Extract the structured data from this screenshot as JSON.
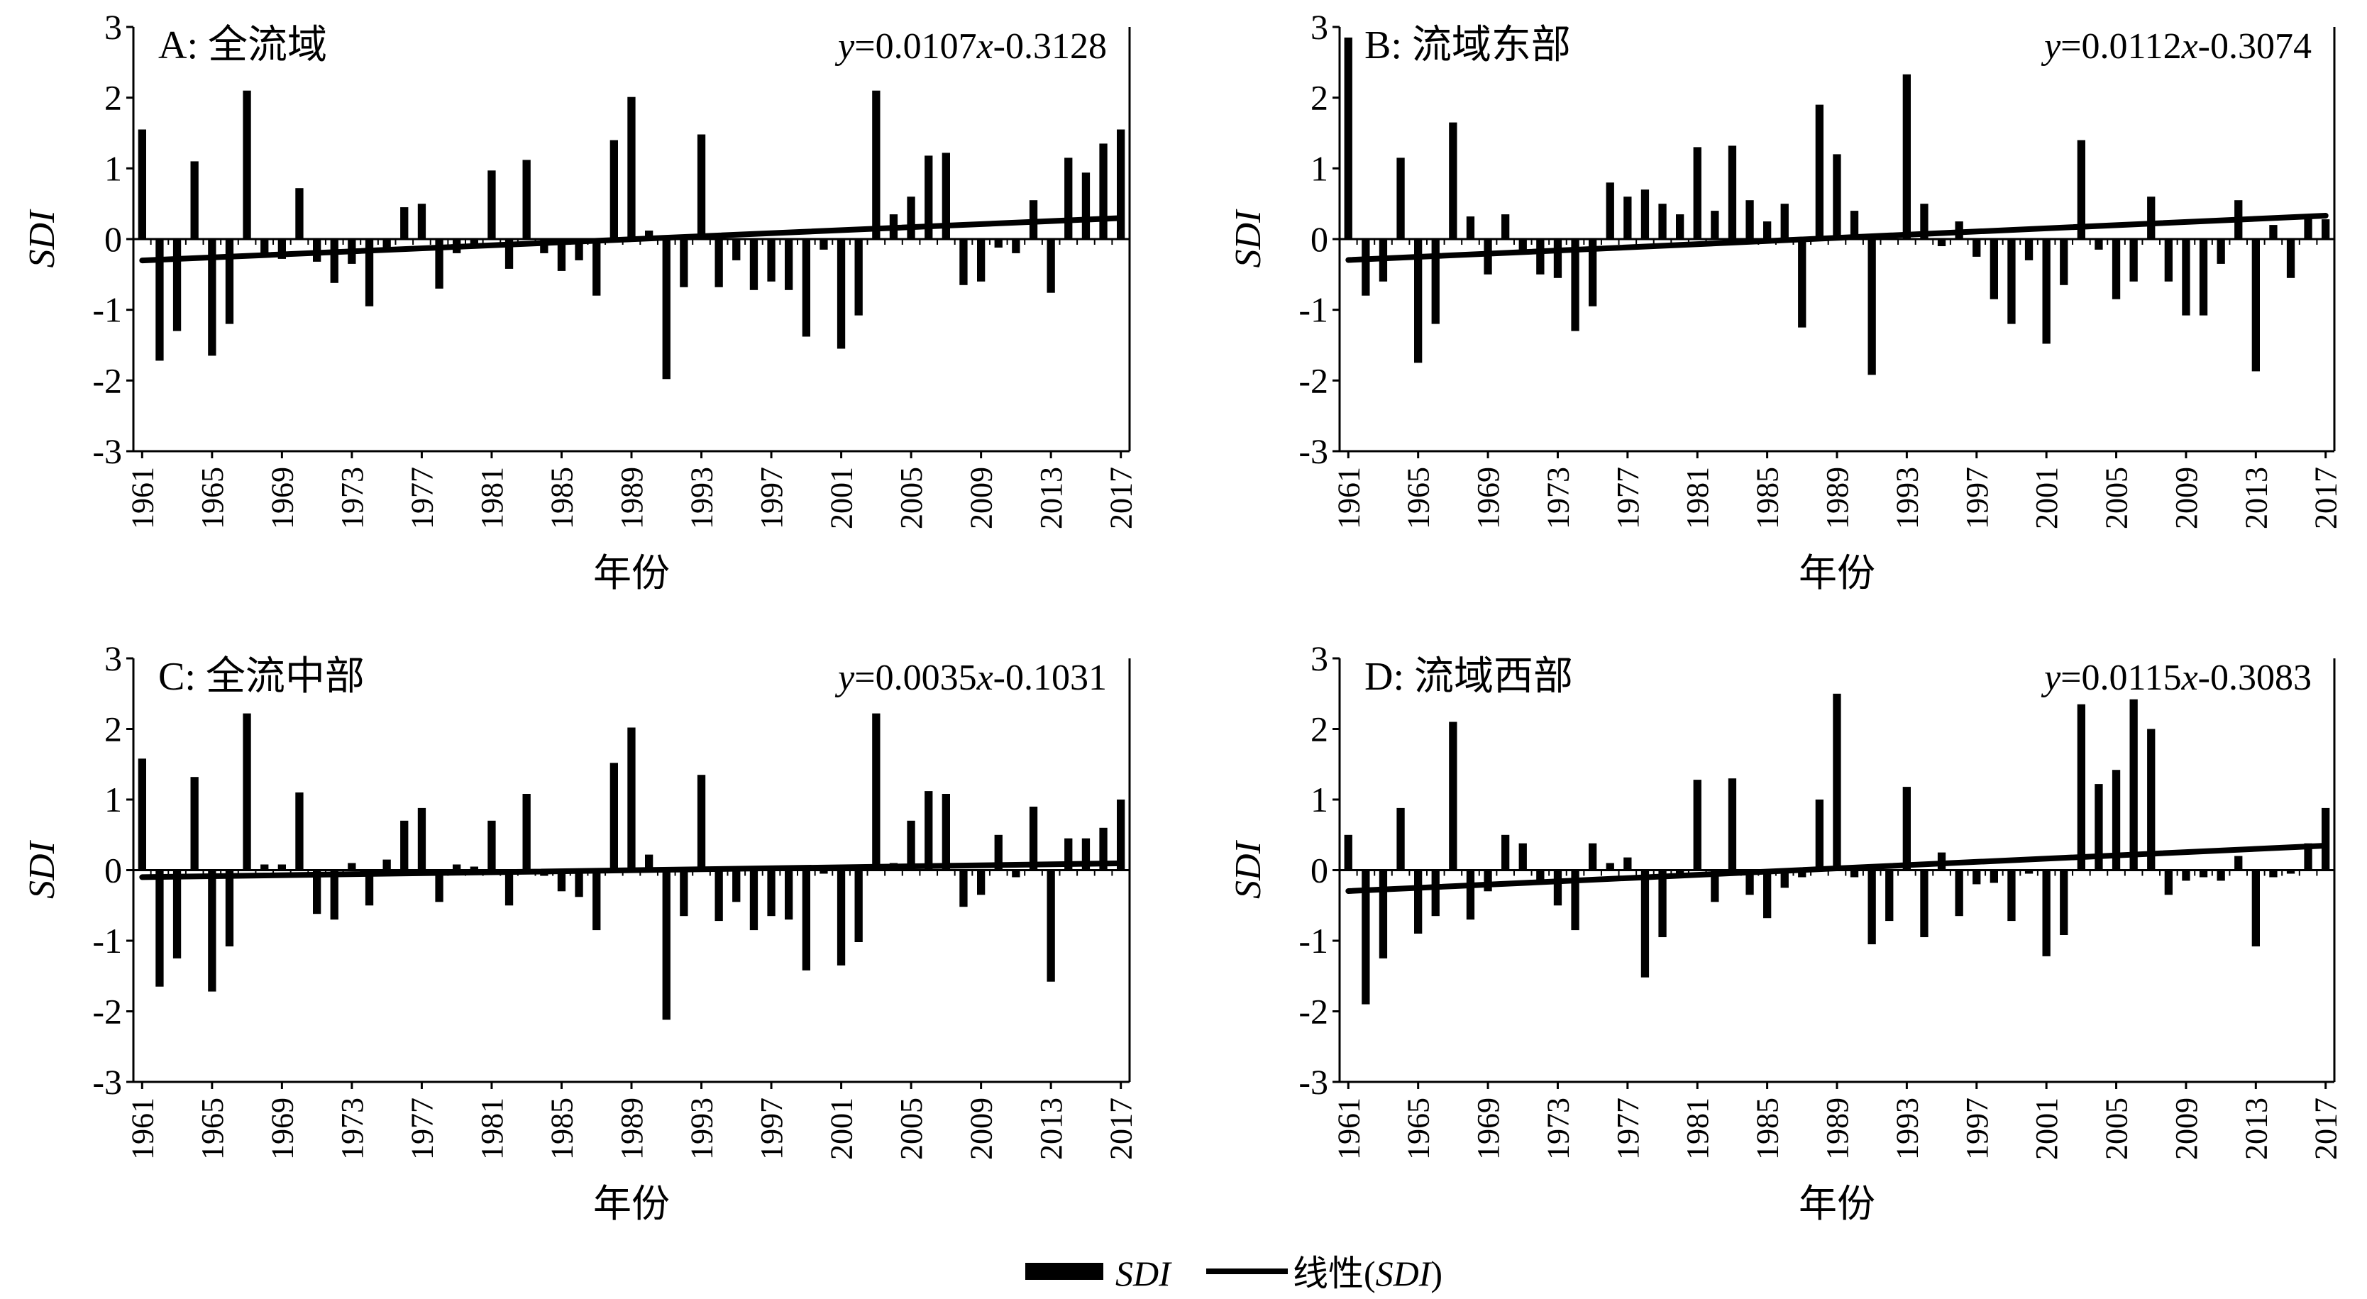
{
  "chart_data": [
    {
      "type": "bar",
      "title": "A: 全流域",
      "equation": {
        "var": "y",
        "text": "=0.0107",
        "var2": "x",
        "rest": "-0.3128"
      },
      "xlabel": "年份",
      "ylabel": "SDI",
      "ylim": [
        -3,
        3
      ],
      "yticks": [
        3,
        2,
        1,
        0,
        -1,
        -2,
        -3
      ],
      "xtick_labels": [
        "1961",
        "1965",
        "1969",
        "1973",
        "1977",
        "1981",
        "1985",
        "1989",
        "1993",
        "1997",
        "2001",
        "2005",
        "2009",
        "2013",
        "2017"
      ],
      "x": [
        1961,
        1962,
        1963,
        1964,
        1965,
        1966,
        1967,
        1968,
        1969,
        1970,
        1971,
        1972,
        1973,
        1974,
        1975,
        1976,
        1977,
        1978,
        1979,
        1980,
        1981,
        1982,
        1983,
        1984,
        1985,
        1986,
        1987,
        1988,
        1989,
        1990,
        1991,
        1992,
        1993,
        1994,
        1995,
        1996,
        1997,
        1998,
        1999,
        2000,
        2001,
        2002,
        2003,
        2004,
        2005,
        2006,
        2007,
        2008,
        2009,
        2010,
        2011,
        2012,
        2013,
        2014,
        2015,
        2016,
        2017
      ],
      "series": [
        {
          "name": "SDI",
          "values": [
            1.55,
            -1.72,
            -1.3,
            1.1,
            -1.65,
            -1.2,
            2.1,
            -0.2,
            -0.28,
            0.72,
            -0.32,
            -0.62,
            -0.35,
            -0.95,
            -0.15,
            0.45,
            0.5,
            -0.7,
            -0.2,
            -0.08,
            0.97,
            -0.42,
            1.12,
            -0.2,
            -0.45,
            -0.3,
            -0.8,
            1.4,
            2.01,
            0.12,
            -1.98,
            -0.68,
            1.48,
            -0.68,
            -0.3,
            -0.72,
            -0.6,
            -0.72,
            -1.38,
            -0.15,
            -1.55,
            -1.08,
            2.1,
            0.35,
            0.6,
            1.18,
            1.22,
            -0.65,
            -0.6,
            -0.12,
            -0.2,
            0.55,
            -0.76,
            1.15,
            0.94,
            1.35,
            1.55
          ]
        },
        {
          "name": "线性(SDI)",
          "type": "linear",
          "slope": 0.0107,
          "intercept": -0.3128
        }
      ]
    },
    {
      "type": "bar",
      "title": "B: 流域东部",
      "equation": {
        "var": "y",
        "text": "=0.0112",
        "var2": "x",
        "rest": "-0.3074"
      },
      "xlabel": "年份",
      "ylabel": "SDI",
      "ylim": [
        -3,
        3
      ],
      "yticks": [
        3,
        2,
        1,
        0,
        -1,
        -2,
        -3
      ],
      "xtick_labels": [
        "1961",
        "1965",
        "1969",
        "1973",
        "1977",
        "1981",
        "1985",
        "1989",
        "1993",
        "1997",
        "2001",
        "2005",
        "2009",
        "2013",
        "2017"
      ],
      "x": [
        1961,
        1962,
        1963,
        1964,
        1965,
        1966,
        1967,
        1968,
        1969,
        1970,
        1971,
        1972,
        1973,
        1974,
        1975,
        1976,
        1977,
        1978,
        1979,
        1980,
        1981,
        1982,
        1983,
        1984,
        1985,
        1986,
        1987,
        1988,
        1989,
        1990,
        1991,
        1992,
        1993,
        1994,
        1995,
        1996,
        1997,
        1998,
        1999,
        2000,
        2001,
        2002,
        2003,
        2004,
        2005,
        2006,
        2007,
        2008,
        2009,
        2010,
        2011,
        2012,
        2013,
        2014,
        2015,
        2016,
        2017
      ],
      "series": [
        {
          "name": "SDI",
          "values": [
            2.85,
            -0.8,
            -0.6,
            1.15,
            -1.75,
            -1.2,
            1.65,
            0.32,
            -0.5,
            0.35,
            -0.15,
            -0.5,
            -0.55,
            -1.3,
            -0.95,
            0.8,
            0.6,
            0.7,
            0.5,
            0.35,
            1.3,
            0.4,
            1.32,
            0.55,
            0.25,
            0.5,
            -1.25,
            1.9,
            1.2,
            0.4,
            -1.92,
            0.05,
            2.33,
            0.5,
            -0.1,
            0.25,
            -0.25,
            -0.85,
            -1.2,
            -0.3,
            -1.48,
            -0.65,
            1.4,
            -0.15,
            -0.85,
            -0.6,
            0.6,
            -0.6,
            -1.08,
            -1.08,
            -0.35,
            0.55,
            -1.87,
            0.2,
            -0.55,
            0.33,
            0.28
          ]
        },
        {
          "name": "线性(SDI)",
          "type": "linear",
          "slope": 0.0112,
          "intercept": -0.3074
        }
      ]
    },
    {
      "type": "bar",
      "title": "C: 全流中部",
      "equation": {
        "var": "y",
        "text": "=0.0035",
        "var2": "x",
        "rest": "-0.1031"
      },
      "xlabel": "年份",
      "ylabel": "SDI",
      "ylim": [
        -3,
        3
      ],
      "yticks": [
        3,
        2,
        1,
        0,
        -1,
        -2,
        -3
      ],
      "xtick_labels": [
        "1961",
        "1965",
        "1969",
        "1973",
        "1977",
        "1981",
        "1985",
        "1989",
        "1993",
        "1997",
        "2001",
        "2005",
        "2009",
        "2013",
        "2017"
      ],
      "x": [
        1961,
        1962,
        1963,
        1964,
        1965,
        1966,
        1967,
        1968,
        1969,
        1970,
        1971,
        1972,
        1973,
        1974,
        1975,
        1976,
        1977,
        1978,
        1979,
        1980,
        1981,
        1982,
        1983,
        1984,
        1985,
        1986,
        1987,
        1988,
        1989,
        1990,
        1991,
        1992,
        1993,
        1994,
        1995,
        1996,
        1997,
        1998,
        1999,
        2000,
        2001,
        2002,
        2003,
        2004,
        2005,
        2006,
        2007,
        2008,
        2009,
        2010,
        2011,
        2012,
        2013,
        2014,
        2015,
        2016,
        2017
      ],
      "series": [
        {
          "name": "SDI",
          "values": [
            1.58,
            -1.65,
            -1.25,
            1.32,
            -1.72,
            -1.08,
            2.22,
            0.08,
            0.08,
            1.1,
            -0.62,
            -0.7,
            0.1,
            -0.5,
            0.15,
            0.7,
            0.88,
            -0.45,
            0.08,
            0.05,
            0.7,
            -0.5,
            1.08,
            -0.08,
            -0.3,
            -0.38,
            -0.85,
            1.52,
            2.02,
            0.22,
            -2.12,
            -0.65,
            1.35,
            -0.72,
            -0.45,
            -0.85,
            -0.65,
            -0.7,
            -1.42,
            -0.05,
            -1.35,
            -1.02,
            2.22,
            0.1,
            0.7,
            1.12,
            1.08,
            -0.52,
            -0.35,
            0.5,
            -0.1,
            0.9,
            -1.58,
            0.45,
            0.45,
            0.6,
            1.0
          ]
        },
        {
          "name": "线性(SDI)",
          "type": "linear",
          "slope": 0.0035,
          "intercept": -0.1031
        }
      ]
    },
    {
      "type": "bar",
      "title": "D: 流域西部",
      "equation": {
        "var": "y",
        "text": "=0.0115",
        "var2": "x",
        "rest": "-0.3083"
      },
      "xlabel": "年份",
      "ylabel": "SDI",
      "ylim": [
        -3,
        3
      ],
      "yticks": [
        3,
        2,
        1,
        0,
        -1,
        -2,
        -3
      ],
      "xtick_labels": [
        "1961",
        "1965",
        "1969",
        "1973",
        "1977",
        "1981",
        "1985",
        "1989",
        "1993",
        "1997",
        "2001",
        "2005",
        "2009",
        "2013",
        "2017"
      ],
      "x": [
        1961,
        1962,
        1963,
        1964,
        1965,
        1966,
        1967,
        1968,
        1969,
        1970,
        1971,
        1972,
        1973,
        1974,
        1975,
        1976,
        1977,
        1978,
        1979,
        1980,
        1981,
        1982,
        1983,
        1984,
        1985,
        1986,
        1987,
        1988,
        1989,
        1990,
        1991,
        1992,
        1993,
        1994,
        1995,
        1996,
        1997,
        1998,
        1999,
        2000,
        2001,
        2002,
        2003,
        2004,
        2005,
        2006,
        2007,
        2008,
        2009,
        2010,
        2011,
        2012,
        2013,
        2014,
        2015,
        2016,
        2017
      ],
      "series": [
        {
          "name": "SDI",
          "values": [
            0.5,
            -1.9,
            -1.25,
            0.88,
            -0.9,
            -0.65,
            2.1,
            -0.7,
            -0.3,
            0.5,
            0.38,
            -0.15,
            -0.5,
            -0.85,
            0.38,
            0.1,
            0.18,
            -1.52,
            -0.95,
            -0.1,
            1.28,
            -0.45,
            1.3,
            -0.35,
            -0.68,
            -0.25,
            -0.1,
            1.0,
            2.5,
            -0.1,
            -1.05,
            -0.72,
            1.18,
            -0.95,
            0.25,
            -0.65,
            -0.2,
            -0.18,
            -0.72,
            -0.05,
            -1.22,
            -0.92,
            2.35,
            1.22,
            1.42,
            2.42,
            2.0,
            -0.35,
            -0.15,
            -0.1,
            -0.15,
            0.2,
            -1.08,
            -0.1,
            -0.05,
            0.38,
            0.88
          ]
        },
        {
          "name": "线性(SDI)",
          "type": "linear",
          "slope": 0.0115,
          "intercept": -0.3083
        }
      ]
    }
  ],
  "legend": {
    "bar_label": "SDI",
    "line_label_prefix": "线性(",
    "line_label_var": "SDI",
    "line_label_suffix": ")"
  }
}
